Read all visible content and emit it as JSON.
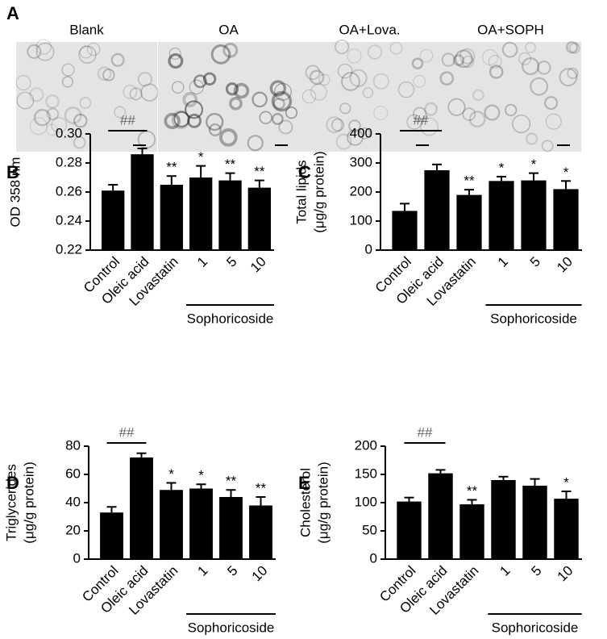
{
  "panel_a": {
    "label": "A",
    "images": [
      {
        "label": "Blank"
      },
      {
        "label": "OA"
      },
      {
        "label": "OA+Lova."
      },
      {
        "label": "OA+SOPH"
      }
    ]
  },
  "chart_data": [
    {
      "type": "bar",
      "panel": "B",
      "y_label": [
        "OD 358 nm"
      ],
      "categories": [
        "Control",
        "Oleic acid",
        "Lovastatin",
        "1",
        "5",
        "10"
      ],
      "group_label": "Sophoricoside",
      "values": [
        0.261,
        0.286,
        0.265,
        0.27,
        0.268,
        0.263
      ],
      "errors": [
        0.004,
        0.004,
        0.006,
        0.008,
        0.005,
        0.005
      ],
      "sig_labels": [
        null,
        null,
        "**",
        "*",
        "**",
        "**"
      ],
      "comparison_label": "##",
      "color": "#000000",
      "ylim": [
        0.22,
        0.3
      ],
      "yticks": [
        0.22,
        0.24,
        0.26,
        0.28,
        {
          "value": 0.3,
          "label": "0.30"
        }
      ]
    },
    {
      "type": "bar",
      "panel": "C",
      "y_label": [
        "Total lipids",
        "(μg/g protein)"
      ],
      "categories": [
        "Control",
        "Oleic acid",
        "Lovastatin",
        "1",
        "5",
        "10"
      ],
      "group_label": "Sophoricoside",
      "values": [
        135,
        275,
        190,
        238,
        240,
        210
      ],
      "errors": [
        25,
        20,
        18,
        15,
        25,
        28
      ],
      "sig_labels": [
        null,
        null,
        "**",
        "*",
        "*",
        "*"
      ],
      "comparison_label": "##",
      "color": "#000000",
      "ylim": [
        0,
        400
      ],
      "yticks": [
        0,
        100,
        200,
        300,
        400
      ]
    },
    {
      "type": "bar",
      "panel": "D",
      "y_label": [
        "Triglycerides",
        "(μg/g protein)"
      ],
      "categories": [
        "Control",
        "Oleic acid",
        "Lovastatin",
        "1",
        "5",
        "10"
      ],
      "group_label": "Sophoricoside",
      "values": [
        33,
        72,
        49,
        50,
        44,
        38
      ],
      "errors": [
        4,
        3,
        5,
        3,
        5,
        6
      ],
      "sig_labels": [
        null,
        null,
        "*",
        "*",
        "**",
        "**"
      ],
      "comparison_label": "##",
      "color": "#000000",
      "ylim": [
        0,
        80
      ],
      "yticks": [
        0,
        20,
        40,
        60,
        80
      ]
    },
    {
      "type": "bar",
      "panel": "E",
      "y_label": [
        "Cholesterol",
        "(μg/g protein)"
      ],
      "categories": [
        "Control",
        "Oleic acid",
        "Lovastatin",
        "1",
        "5",
        "10"
      ],
      "group_label": "Sophoricoside",
      "values": [
        102,
        152,
        97,
        140,
        130,
        107
      ],
      "errors": [
        7,
        6,
        8,
        6,
        12,
        13
      ],
      "sig_labels": [
        null,
        null,
        "**",
        null,
        null,
        "*"
      ],
      "comparison_label": "##",
      "color": "#000000",
      "ylim": [
        0,
        200
      ],
      "yticks": [
        0,
        50,
        100,
        150,
        200
      ]
    }
  ]
}
